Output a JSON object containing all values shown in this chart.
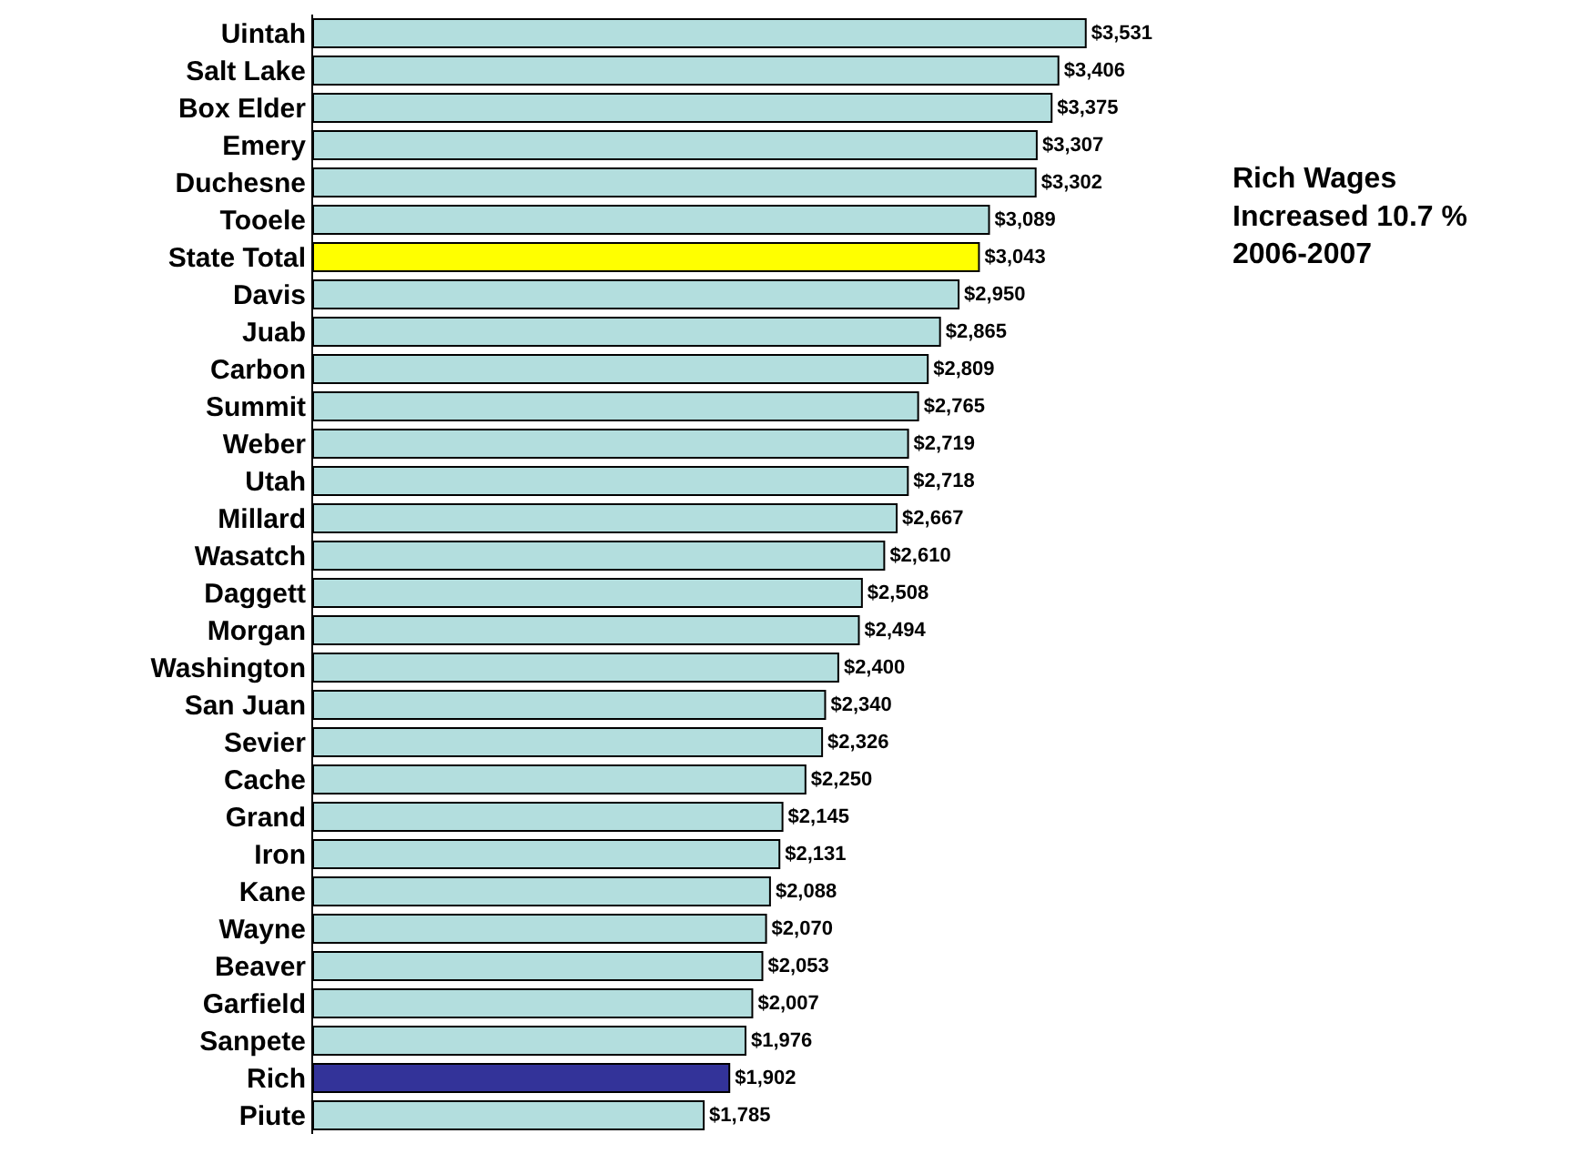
{
  "chart_data": {
    "type": "bar",
    "orientation": "horizontal",
    "categories": [
      "Uintah",
      "Salt Lake",
      "Box Elder",
      "Emery",
      "Duchesne",
      "Tooele",
      "State Total",
      "Davis",
      "Juab",
      "Carbon",
      "Summit",
      "Weber",
      "Utah",
      "Millard",
      "Wasatch",
      "Daggett",
      "Morgan",
      "Washington",
      "San Juan",
      "Sevier",
      "Cache",
      "Grand",
      "Iron",
      "Kane",
      "Wayne",
      "Beaver",
      "Garfield",
      "Sanpete",
      "Rich",
      "Piute"
    ],
    "values": [
      3531,
      3406,
      3375,
      3307,
      3302,
      3089,
      3043,
      2950,
      2865,
      2809,
      2765,
      2719,
      2718,
      2667,
      2610,
      2508,
      2494,
      2400,
      2340,
      2326,
      2250,
      2145,
      2131,
      2088,
      2070,
      2053,
      2007,
      1976,
      1902,
      1785
    ],
    "value_labels": [
      "$3,531",
      "$3,406",
      "$3,375",
      "$3,307",
      "$3,302",
      "$3,089",
      "$3,043",
      "$2,950",
      "$2,865",
      "$2,809",
      "$2,765",
      "$2,719",
      "$2,718",
      "$2,667",
      "$2,610",
      "$2,508",
      "$2,494",
      "$2,400",
      "$2,340",
      "$2,326",
      "$2,250",
      "$2,145",
      "$2,131",
      "$2,088",
      "$2,070",
      "$2,053",
      "$2,007",
      "$1,976",
      "$1,902",
      "$1,785"
    ],
    "colors": [
      "#b3dede",
      "#b3dede",
      "#b3dede",
      "#b3dede",
      "#b3dede",
      "#b3dede",
      "#ffff00",
      "#b3dede",
      "#b3dede",
      "#b3dede",
      "#b3dede",
      "#b3dede",
      "#b3dede",
      "#b3dede",
      "#b3dede",
      "#b3dede",
      "#b3dede",
      "#b3dede",
      "#b3dede",
      "#b3dede",
      "#b3dede",
      "#b3dede",
      "#b3dede",
      "#b3dede",
      "#b3dede",
      "#b3dede",
      "#b3dede",
      "#b3dede",
      "#333399",
      "#b3dede"
    ],
    "tick_labels": "y",
    "annotations": [
      "Rich Wages\nIncreased 10.7 %\n2006-2007"
    ]
  }
}
